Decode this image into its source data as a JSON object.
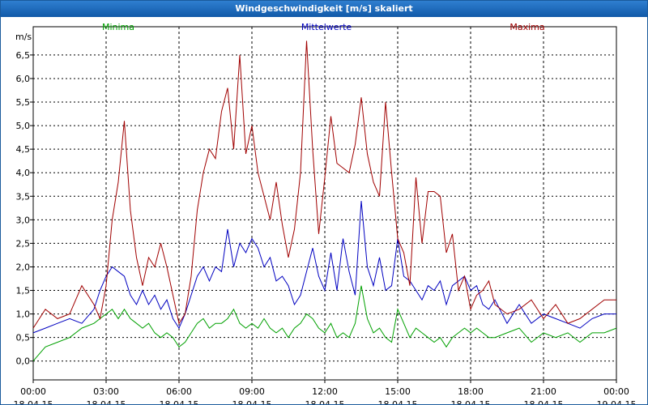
{
  "window": {
    "title": "Windgeschwindigkeit [m/s] skaliert"
  },
  "chart_data": {
    "type": "line",
    "title": "Windgeschwindigkeit [m/s] skaliert",
    "ylabel": "m/s",
    "xlabel": "",
    "ylim": [
      -0.4,
      7.1
    ],
    "xlim_hours": [
      0,
      24
    ],
    "grid": true,
    "y_ticks": [
      "0,0",
      "0,5",
      "1,0",
      "1,5",
      "2,0",
      "2,5",
      "3,0",
      "3,5",
      "4,0",
      "4,5",
      "5,0",
      "5,5",
      "6,0",
      "6,5"
    ],
    "y_tick_values": [
      0,
      0.5,
      1,
      1.5,
      2,
      2.5,
      3,
      3.5,
      4,
      4.5,
      5,
      5.5,
      6,
      6.5
    ],
    "x_ticks": [
      {
        "hour": 0,
        "time": "00:00",
        "date": "18.04.15"
      },
      {
        "hour": 3,
        "time": "03:00",
        "date": "18.04.15"
      },
      {
        "hour": 6,
        "time": "06:00",
        "date": "18.04.15"
      },
      {
        "hour": 9,
        "time": "09:00",
        "date": "18.04.15"
      },
      {
        "hour": 12,
        "time": "12:00",
        "date": "18.04.15"
      },
      {
        "hour": 15,
        "time": "15:00",
        "date": "18.04.15"
      },
      {
        "hour": 18,
        "time": "18:00",
        "date": "18.04.15"
      },
      {
        "hour": 21,
        "time": "21:00",
        "date": "18.04.15"
      },
      {
        "hour": 24,
        "time": "00:00",
        "date": "19.04.15"
      }
    ],
    "x_hours": [
      0,
      0.5,
      1,
      1.5,
      2,
      2.5,
      2.75,
      3,
      3.25,
      3.5,
      3.75,
      4,
      4.25,
      4.5,
      4.75,
      5,
      5.25,
      5.5,
      5.75,
      6,
      6.25,
      6.5,
      6.75,
      7,
      7.25,
      7.5,
      7.75,
      8,
      8.25,
      8.5,
      8.75,
      9,
      9.25,
      9.5,
      9.75,
      10,
      10.25,
      10.5,
      10.75,
      11,
      11.25,
      11.5,
      11.75,
      12,
      12.25,
      12.5,
      12.75,
      13,
      13.25,
      13.5,
      13.75,
      14,
      14.25,
      14.5,
      14.75,
      15,
      15.25,
      15.5,
      15.75,
      16,
      16.25,
      16.5,
      16.75,
      17,
      17.25,
      17.5,
      17.75,
      18,
      18.25,
      18.5,
      18.75,
      19,
      19.5,
      20,
      20.5,
      21,
      21.5,
      22,
      22.5,
      23,
      23.5,
      24
    ],
    "series": [
      {
        "name": "Minima",
        "color": "#00a000",
        "values": [
          0.0,
          0.3,
          0.4,
          0.5,
          0.7,
          0.8,
          0.9,
          1.0,
          1.1,
          0.9,
          1.1,
          0.9,
          0.8,
          0.7,
          0.8,
          0.6,
          0.5,
          0.6,
          0.5,
          0.3,
          0.4,
          0.6,
          0.8,
          0.9,
          0.7,
          0.8,
          0.8,
          0.9,
          1.1,
          0.8,
          0.7,
          0.8,
          0.7,
          0.9,
          0.7,
          0.6,
          0.7,
          0.5,
          0.7,
          0.8,
          1.0,
          0.9,
          0.7,
          0.6,
          0.8,
          0.5,
          0.6,
          0.5,
          0.8,
          1.6,
          0.9,
          0.6,
          0.7,
          0.5,
          0.4,
          1.1,
          0.8,
          0.5,
          0.7,
          0.6,
          0.5,
          0.4,
          0.5,
          0.3,
          0.5,
          0.6,
          0.7,
          0.6,
          0.7,
          0.6,
          0.5,
          0.5,
          0.6,
          0.7,
          0.4,
          0.6,
          0.5,
          0.6,
          0.4,
          0.6,
          0.6,
          0.7
        ]
      },
      {
        "name": "Mittelwerte",
        "color": "#0000c0",
        "values": [
          0.6,
          0.7,
          0.8,
          0.9,
          0.8,
          1.1,
          1.5,
          1.8,
          2.0,
          1.9,
          1.8,
          1.4,
          1.2,
          1.5,
          1.2,
          1.4,
          1.1,
          1.3,
          0.9,
          0.7,
          1.0,
          1.4,
          1.8,
          2.0,
          1.7,
          2.0,
          1.9,
          2.8,
          2.0,
          2.5,
          2.3,
          2.6,
          2.4,
          2.0,
          2.2,
          1.7,
          1.8,
          1.6,
          1.2,
          1.4,
          1.9,
          2.4,
          1.8,
          1.5,
          2.3,
          1.5,
          2.6,
          1.9,
          1.4,
          3.4,
          2.0,
          1.6,
          2.2,
          1.5,
          1.6,
          2.6,
          1.8,
          1.7,
          1.5,
          1.3,
          1.6,
          1.5,
          1.7,
          1.2,
          1.6,
          1.7,
          1.8,
          1.5,
          1.6,
          1.2,
          1.1,
          1.3,
          0.8,
          1.2,
          0.8,
          1.0,
          0.9,
          0.8,
          0.7,
          0.9,
          1.0,
          1.0
        ]
      },
      {
        "name": "Maxima",
        "color": "#a00000",
        "values": [
          0.7,
          1.1,
          0.9,
          1.0,
          1.6,
          1.2,
          0.9,
          1.6,
          3.0,
          3.8,
          5.1,
          3.2,
          2.2,
          1.6,
          2.2,
          2.0,
          2.5,
          2.0,
          1.4,
          0.8,
          1.0,
          1.8,
          3.2,
          4.0,
          4.5,
          4.3,
          5.3,
          5.8,
          4.5,
          6.5,
          4.4,
          5.0,
          4.0,
          3.5,
          3.0,
          3.8,
          2.9,
          2.2,
          2.8,
          4.0,
          6.8,
          4.5,
          2.7,
          3.9,
          5.2,
          4.2,
          4.1,
          4.0,
          4.6,
          5.6,
          4.4,
          3.8,
          3.5,
          5.5,
          4.0,
          2.6,
          2.3,
          1.6,
          3.9,
          2.5,
          3.6,
          3.6,
          3.5,
          2.3,
          2.7,
          1.5,
          1.8,
          1.1,
          1.4,
          1.5,
          1.7,
          1.2,
          1.0,
          1.1,
          1.3,
          0.9,
          1.2,
          0.8,
          0.9,
          1.1,
          1.3,
          1.3
        ]
      }
    ],
    "legend": [
      "Minima",
      "Mittelwerte",
      "Maxima"
    ],
    "legend_position": "top"
  }
}
